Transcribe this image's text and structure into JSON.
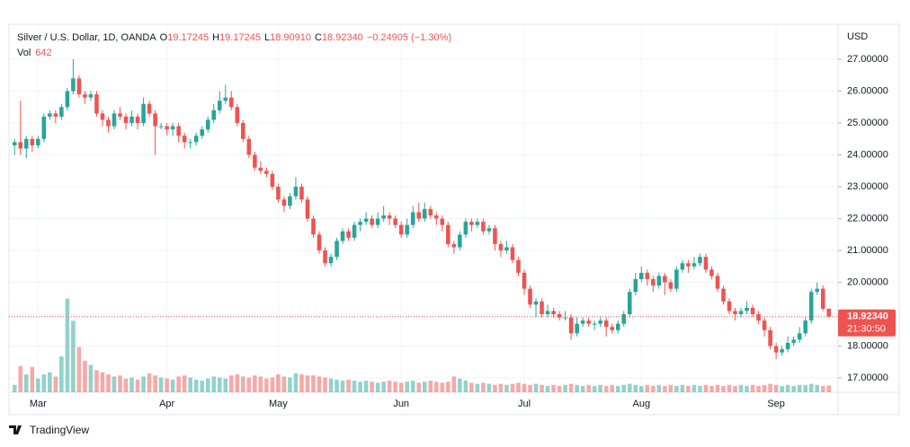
{
  "chart_data": {
    "type": "candlestick",
    "header": {
      "symbol": "Silver / U.S. Dollar, 1D, OANDA",
      "o_label": "O",
      "o": "19.17245",
      "h_label": "H",
      "h": "19.17245",
      "l_label": "L",
      "l": "18.90910",
      "c_label": "C",
      "c": "18.92340",
      "change": "−0.24905 (−1.30%)",
      "vol_label": "Vol",
      "vol": "642"
    },
    "y_axis_unit": "USD",
    "brand": "TradingView",
    "last_price": {
      "value": 18.9234,
      "label": "18.92340"
    },
    "countdown": "21:30:50",
    "up_color": "#26a69a",
    "down_color": "#ef5350",
    "grid": true,
    "categories": [
      null,
      null,
      null,
      null,
      "Mar",
      null,
      null,
      null,
      null,
      null,
      null,
      null,
      null,
      null,
      null,
      null,
      null,
      null,
      null,
      null,
      null,
      null,
      null,
      null,
      null,
      null,
      "Apr",
      null,
      null,
      null,
      null,
      null,
      null,
      null,
      null,
      null,
      null,
      null,
      null,
      null,
      null,
      null,
      null,
      null,
      null,
      "May",
      null,
      null,
      null,
      null,
      null,
      null,
      null,
      null,
      null,
      null,
      null,
      null,
      null,
      null,
      null,
      null,
      null,
      null,
      null,
      null,
      "Jun",
      null,
      null,
      null,
      null,
      null,
      null,
      null,
      null,
      null,
      null,
      null,
      null,
      null,
      null,
      null,
      null,
      null,
      null,
      null,
      null,
      "Jul",
      null,
      null,
      null,
      null,
      null,
      null,
      null,
      null,
      null,
      null,
      null,
      null,
      null,
      null,
      null,
      null,
      null,
      null,
      null,
      "Aug",
      null,
      null,
      null,
      null,
      null,
      null,
      null,
      null,
      null,
      null,
      null,
      null,
      null,
      null,
      null,
      null,
      null,
      null,
      null,
      null,
      null,
      null,
      "Sep",
      null,
      null,
      null,
      null,
      null,
      null,
      null,
      null,
      null
    ],
    "open": [
      24.3,
      24.4,
      24.2,
      24.5,
      24.3,
      24.5,
      25.2,
      25.3,
      25.2,
      25.5,
      26.0,
      26.4,
      25.9,
      25.8,
      25.9,
      25.3,
      25.1,
      24.9,
      25.3,
      25.2,
      25.0,
      25.2,
      25.0,
      25.6,
      25.3,
      24.9,
      24.9,
      24.8,
      24.9,
      24.6,
      24.4,
      24.4,
      24.6,
      24.8,
      25.1,
      25.4,
      25.7,
      25.8,
      25.5,
      25.0,
      24.5,
      24.0,
      23.6,
      23.5,
      23.4,
      23.0,
      22.6,
      22.4,
      22.7,
      23.0,
      22.6,
      22.0,
      21.5,
      21.0,
      20.6,
      20.8,
      21.3,
      21.6,
      21.4,
      21.8,
      21.9,
      22.0,
      21.8,
      22.0,
      22.1,
      22.0,
      21.8,
      21.5,
      21.8,
      22.2,
      22.0,
      22.3,
      22.1,
      22.0,
      21.8,
      21.2,
      21.1,
      21.5,
      21.9,
      21.8,
      21.9,
      21.6,
      21.7,
      21.2,
      21.0,
      21.1,
      20.7,
      20.3,
      19.8,
      19.3,
      19.4,
      19.0,
      19.1,
      19.0,
      18.9,
      18.9,
      18.4,
      18.7,
      18.8,
      18.7,
      18.7,
      18.8,
      18.6,
      18.5,
      18.7,
      19.0,
      19.7,
      20.1,
      20.3,
      20.1,
      19.9,
      20.2,
      20.0,
      19.8,
      20.4,
      20.6,
      20.5,
      20.6,
      20.8,
      20.4,
      20.2,
      19.8,
      19.4,
      19.1,
      19.0,
      19.1,
      19.2,
      19.0,
      18.8,
      18.5,
      18.0,
      17.8,
      17.9,
      18.1,
      18.2,
      18.4,
      18.8,
      19.7,
      19.8,
      19.17245
    ],
    "high": [
      24.5,
      25.7,
      24.6,
      24.6,
      24.6,
      25.3,
      25.4,
      25.4,
      25.6,
      26.1,
      27.0,
      26.5,
      26.0,
      26.0,
      26.0,
      25.4,
      25.2,
      25.4,
      25.5,
      25.3,
      25.4,
      25.3,
      25.8,
      25.7,
      25.4,
      25.0,
      25.0,
      25.0,
      25.0,
      24.7,
      24.5,
      24.7,
      24.9,
      25.2,
      25.6,
      26.0,
      26.2,
      26.0,
      25.6,
      25.1,
      24.6,
      24.1,
      23.8,
      23.6,
      23.5,
      23.1,
      22.7,
      22.8,
      23.3,
      23.1,
      22.7,
      22.1,
      21.6,
      21.1,
      20.9,
      21.4,
      21.7,
      21.7,
      21.9,
      22.0,
      22.2,
      22.1,
      22.2,
      22.4,
      22.2,
      22.1,
      21.9,
      22.0,
      22.4,
      22.5,
      22.5,
      22.4,
      22.2,
      22.1,
      21.9,
      21.3,
      21.6,
      22.0,
      22.0,
      22.0,
      22.0,
      21.8,
      21.8,
      21.3,
      21.3,
      21.2,
      20.8,
      20.4,
      19.9,
      19.5,
      19.5,
      19.3,
      19.2,
      19.1,
      19.1,
      19.0,
      18.9,
      18.9,
      18.9,
      18.8,
      18.9,
      18.9,
      18.7,
      18.8,
      19.1,
      19.8,
      20.3,
      20.5,
      20.4,
      20.2,
      20.3,
      20.3,
      20.1,
      20.5,
      20.7,
      20.7,
      20.8,
      20.9,
      20.9,
      20.5,
      20.3,
      19.9,
      19.5,
      19.2,
      19.2,
      19.4,
      19.3,
      19.1,
      18.9,
      18.6,
      18.1,
      18.0,
      18.3,
      18.3,
      18.6,
      18.9,
      19.8,
      20.0,
      19.9,
      19.17245
    ],
    "low": [
      24.0,
      24.0,
      23.9,
      24.1,
      24.2,
      24.4,
      25.1,
      25.0,
      25.1,
      25.4,
      25.9,
      25.8,
      25.6,
      25.7,
      25.2,
      24.9,
      24.7,
      24.8,
      25.1,
      24.8,
      24.9,
      24.8,
      24.9,
      25.2,
      24.0,
      24.8,
      24.6,
      24.6,
      24.4,
      24.2,
      24.2,
      24.3,
      24.5,
      24.7,
      25.0,
      25.3,
      25.6,
      25.4,
      24.9,
      24.4,
      23.9,
      23.5,
      23.4,
      23.3,
      22.9,
      22.5,
      22.2,
      22.3,
      22.6,
      22.5,
      21.9,
      21.4,
      20.9,
      20.5,
      20.5,
      20.7,
      21.2,
      21.3,
      21.3,
      21.6,
      21.8,
      21.7,
      21.7,
      21.9,
      21.8,
      21.7,
      21.4,
      21.4,
      21.7,
      21.9,
      21.9,
      22.0,
      21.8,
      21.6,
      21.1,
      20.9,
      21.0,
      21.4,
      21.6,
      21.7,
      21.5,
      21.5,
      21.0,
      20.8,
      20.9,
      20.6,
      20.2,
      19.6,
      19.2,
      18.9,
      18.9,
      18.9,
      18.9,
      18.8,
      18.8,
      18.2,
      18.3,
      18.6,
      18.6,
      18.5,
      18.6,
      18.3,
      18.4,
      18.4,
      18.6,
      18.9,
      19.6,
      20.0,
      19.9,
      19.7,
      19.8,
      19.6,
      19.7,
      19.7,
      20.3,
      20.3,
      20.4,
      20.5,
      20.3,
      20.1,
      19.7,
      19.3,
      19.0,
      18.8,
      18.9,
      19.0,
      18.9,
      18.7,
      18.3,
      17.9,
      17.6,
      17.7,
      17.8,
      18.0,
      18.1,
      18.3,
      18.7,
      19.6,
      19.1,
      18.9091
    ],
    "close": [
      24.4,
      24.2,
      24.5,
      24.3,
      24.5,
      25.2,
      25.3,
      25.2,
      25.5,
      26.0,
      26.4,
      25.9,
      25.8,
      25.9,
      25.3,
      25.1,
      24.9,
      25.3,
      25.2,
      25.0,
      25.2,
      25.0,
      25.6,
      25.3,
      24.9,
      24.9,
      24.8,
      24.9,
      24.6,
      24.4,
      24.4,
      24.6,
      24.8,
      25.1,
      25.4,
      25.7,
      25.8,
      25.5,
      25.0,
      24.5,
      24.0,
      23.6,
      23.5,
      23.4,
      23.0,
      22.6,
      22.4,
      22.7,
      23.0,
      22.6,
      22.0,
      21.5,
      21.0,
      20.6,
      20.8,
      21.3,
      21.6,
      21.4,
      21.8,
      21.9,
      22.0,
      21.8,
      22.0,
      22.1,
      22.0,
      21.8,
      21.5,
      21.8,
      22.2,
      22.0,
      22.3,
      22.1,
      22.0,
      21.8,
      21.2,
      21.1,
      21.5,
      21.9,
      21.8,
      21.9,
      21.6,
      21.7,
      21.2,
      21.0,
      21.1,
      20.7,
      20.3,
      19.8,
      19.3,
      19.4,
      19.0,
      19.1,
      19.0,
      18.9,
      18.9,
      18.4,
      18.7,
      18.8,
      18.7,
      18.7,
      18.8,
      18.6,
      18.5,
      18.7,
      19.0,
      19.7,
      20.1,
      20.3,
      20.1,
      19.9,
      20.2,
      20.0,
      19.8,
      20.4,
      20.6,
      20.5,
      20.6,
      20.8,
      20.4,
      20.2,
      19.8,
      19.4,
      19.1,
      19.0,
      19.1,
      19.2,
      19.0,
      18.8,
      18.5,
      18.0,
      17.8,
      17.9,
      18.1,
      18.2,
      18.4,
      18.8,
      19.7,
      19.8,
      19.17,
      18.9234
    ],
    "volume": [
      700,
      2500,
      1700,
      2400,
      1300,
      1700,
      1900,
      1500,
      3400,
      8900,
      6800,
      4300,
      3000,
      2600,
      2100,
      1900,
      1700,
      1500,
      1600,
      1300,
      1400,
      1200,
      1500,
      1800,
      1600,
      1400,
      1300,
      1200,
      1500,
      1600,
      1400,
      1200,
      1100,
      1300,
      1500,
      1400,
      1300,
      1600,
      1700,
      1500,
      1400,
      1600,
      1500,
      1300,
      1400,
      1700,
      1500,
      1400,
      1800,
      1700,
      1600,
      1600,
      1500,
      1400,
      1300,
      1200,
      1100,
      1200,
      1100,
      1000,
      1100,
      1000,
      900,
      1000,
      1100,
      1000,
      900,
      1000,
      1100,
      900,
      1000,
      1100,
      1000,
      900,
      1000,
      1500,
      1300,
      1100,
      900,
      800,
      900,
      800,
      700,
      800,
      700,
      800,
      900,
      800,
      700,
      800,
      700,
      600,
      700,
      600,
      700,
      800,
      700,
      600,
      700,
      600,
      700,
      600,
      700,
      600,
      700,
      800,
      700,
      600,
      700,
      600,
      700,
      600,
      700,
      600,
      700,
      600,
      700,
      600,
      700,
      600,
      700,
      600,
      700,
      600,
      700,
      600,
      700,
      600,
      700,
      800,
      700,
      600,
      700,
      600,
      700,
      700,
      800,
      700,
      600,
      642
    ],
    "ylim": [
      16.55,
      28.1
    ],
    "yticks": [
      {
        "value": 17,
        "label": "17.00000"
      },
      {
        "value": 18,
        "label": "18.00000"
      },
      {
        "value": 19,
        "label": "19.00000"
      },
      {
        "value": 20,
        "label": "20.00000"
      },
      {
        "value": 21,
        "label": "21.00000"
      },
      {
        "value": 22,
        "label": "22.00000"
      },
      {
        "value": 23,
        "label": "23.00000"
      },
      {
        "value": 24,
        "label": "24.00000"
      },
      {
        "value": 25,
        "label": "25.00000"
      },
      {
        "value": 26,
        "label": "26.00000"
      },
      {
        "value": 27,
        "label": "27.00000"
      }
    ],
    "y2lim": [
      0,
      35000
    ]
  }
}
